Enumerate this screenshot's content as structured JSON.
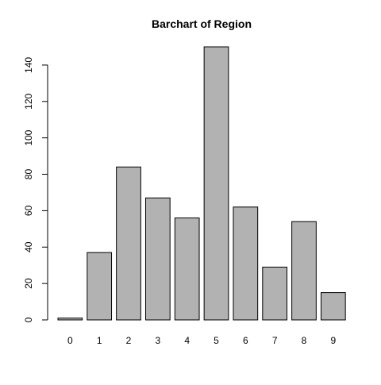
{
  "chart_data": {
    "type": "bar",
    "title": "Barchart of Region",
    "xlabel": "",
    "ylabel": "",
    "categories": [
      "0",
      "1",
      "2",
      "3",
      "4",
      "5",
      "6",
      "7",
      "8",
      "9"
    ],
    "values": [
      1,
      37,
      84,
      67,
      56,
      150,
      62,
      29,
      54,
      15
    ],
    "ylim": [
      0,
      150
    ],
    "yticks": [
      0,
      20,
      40,
      60,
      80,
      100,
      120,
      140
    ],
    "grid": false,
    "legend": "none",
    "colors": {
      "bar_fill": "#b2b2b2",
      "bar_stroke": "#000000",
      "axis": "#000000",
      "text": "#000000",
      "background": "#ffffff"
    }
  }
}
